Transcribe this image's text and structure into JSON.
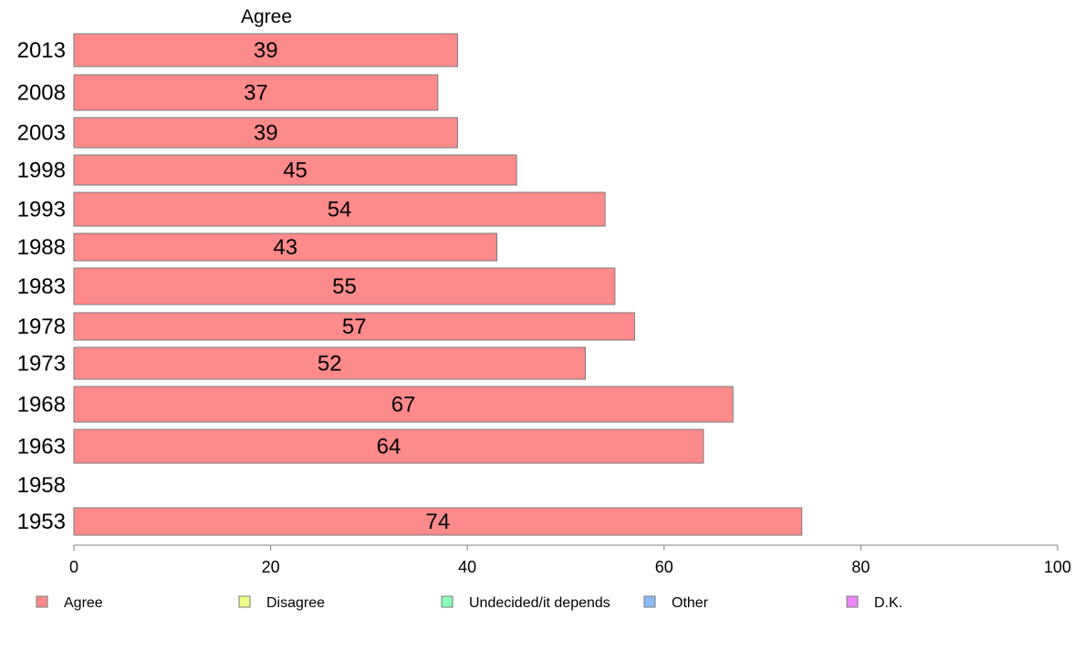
{
  "chart_data": {
    "type": "bar",
    "orientation": "horizontal",
    "column_title": "Agree",
    "categories": [
      "2013",
      "2008",
      "2003",
      "1998",
      "1993",
      "1988",
      "1983",
      "1978",
      "1973",
      "1968",
      "1963",
      "1958",
      "1953"
    ],
    "series": [
      {
        "name": "Agree",
        "color": "#FF8A8A",
        "values": [
          39,
          37,
          39,
          45,
          54,
          43,
          55,
          57,
          52,
          67,
          64,
          null,
          74
        ]
      }
    ],
    "xlim": [
      0,
      100
    ],
    "xticks": [
      0,
      20,
      40,
      60,
      80,
      100
    ],
    "grid": false,
    "legend_position": "bottom",
    "legend": [
      {
        "label": "Agree",
        "color": "#FF8A8A"
      },
      {
        "label": "Disagree",
        "color": "#EEFF88"
      },
      {
        "label": "Undecided/it depends",
        "color": "#88FFBB"
      },
      {
        "label": "Other",
        "color": "#88BBFF"
      },
      {
        "label": "D.K.",
        "color": "#EE88FF"
      }
    ]
  }
}
